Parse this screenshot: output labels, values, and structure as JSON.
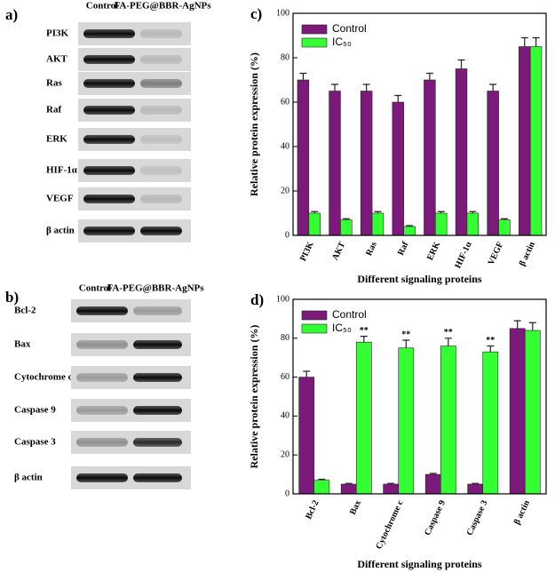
{
  "blots": [
    {
      "label": "a)",
      "columns": [
        "Control",
        "FA-PEG@BBR-AgNPs"
      ],
      "rows": [
        "PI3K",
        "AKT",
        "Ras",
        "Raf",
        "ERK",
        "HIF-1α",
        "VEGF",
        "β actin"
      ]
    },
    {
      "label": "b)",
      "columns": [
        "Control",
        "FA-PEG@BBR-AgNPs"
      ],
      "rows": [
        "Bcl-2",
        "Bax",
        "Cytochrome c",
        "Caspase 9",
        "Caspase 3",
        "β actin"
      ]
    }
  ],
  "chart_data": [
    {
      "type": "bar",
      "panel_label": "c)",
      "y_label": "Relative protein expression (%)",
      "x_label": "Different signaling proteins",
      "categories": [
        "PI3K",
        "AKT",
        "Ras",
        "Raf",
        "ERK",
        "HIF-1α",
        "VEGF",
        "β actin"
      ],
      "series": [
        {
          "name": "Control",
          "color": "#7b1a7b",
          "values": [
            70,
            65,
            65,
            60,
            70,
            75,
            65,
            85
          ],
          "errors": [
            3,
            3,
            3,
            3,
            3,
            4,
            3,
            4
          ]
        },
        {
          "name": "IC₅₀",
          "color": "#33ff33",
          "values": [
            10,
            7,
            10,
            4,
            10,
            10,
            7,
            85
          ],
          "errors": [
            0.7,
            0.5,
            0.7,
            0.4,
            0.7,
            0.7,
            0.5,
            4
          ]
        }
      ],
      "ylim": [
        0,
        100
      ],
      "yticks": [
        0,
        20,
        40,
        60,
        80,
        100
      ],
      "legend": "upper left"
    },
    {
      "type": "bar",
      "panel_label": "d)",
      "y_label": "Relative protein expression (%)",
      "x_label": "Different signaling proteins",
      "categories": [
        "Bcl-2",
        "Bax",
        "Cytochrome c",
        "Caspase 9",
        "Caspase 3",
        "β actin"
      ],
      "series": [
        {
          "name": "Control",
          "color": "#7b1a7b",
          "values": [
            60,
            5,
            5,
            10,
            5,
            85
          ],
          "errors": [
            3,
            0.4,
            0.4,
            0.5,
            0.4,
            4
          ]
        },
        {
          "name": "IC₅₀",
          "color": "#33ff33",
          "values": [
            7,
            78,
            75,
            76,
            73,
            84
          ],
          "errors": [
            0.5,
            3,
            4,
            4,
            3,
            4
          ],
          "significance": [
            null,
            "**",
            "**",
            "**",
            "**",
            null
          ]
        }
      ],
      "ylim": [
        0,
        100
      ],
      "yticks": [
        0,
        20,
        40,
        60,
        80,
        100
      ],
      "legend": "upper left"
    }
  ]
}
